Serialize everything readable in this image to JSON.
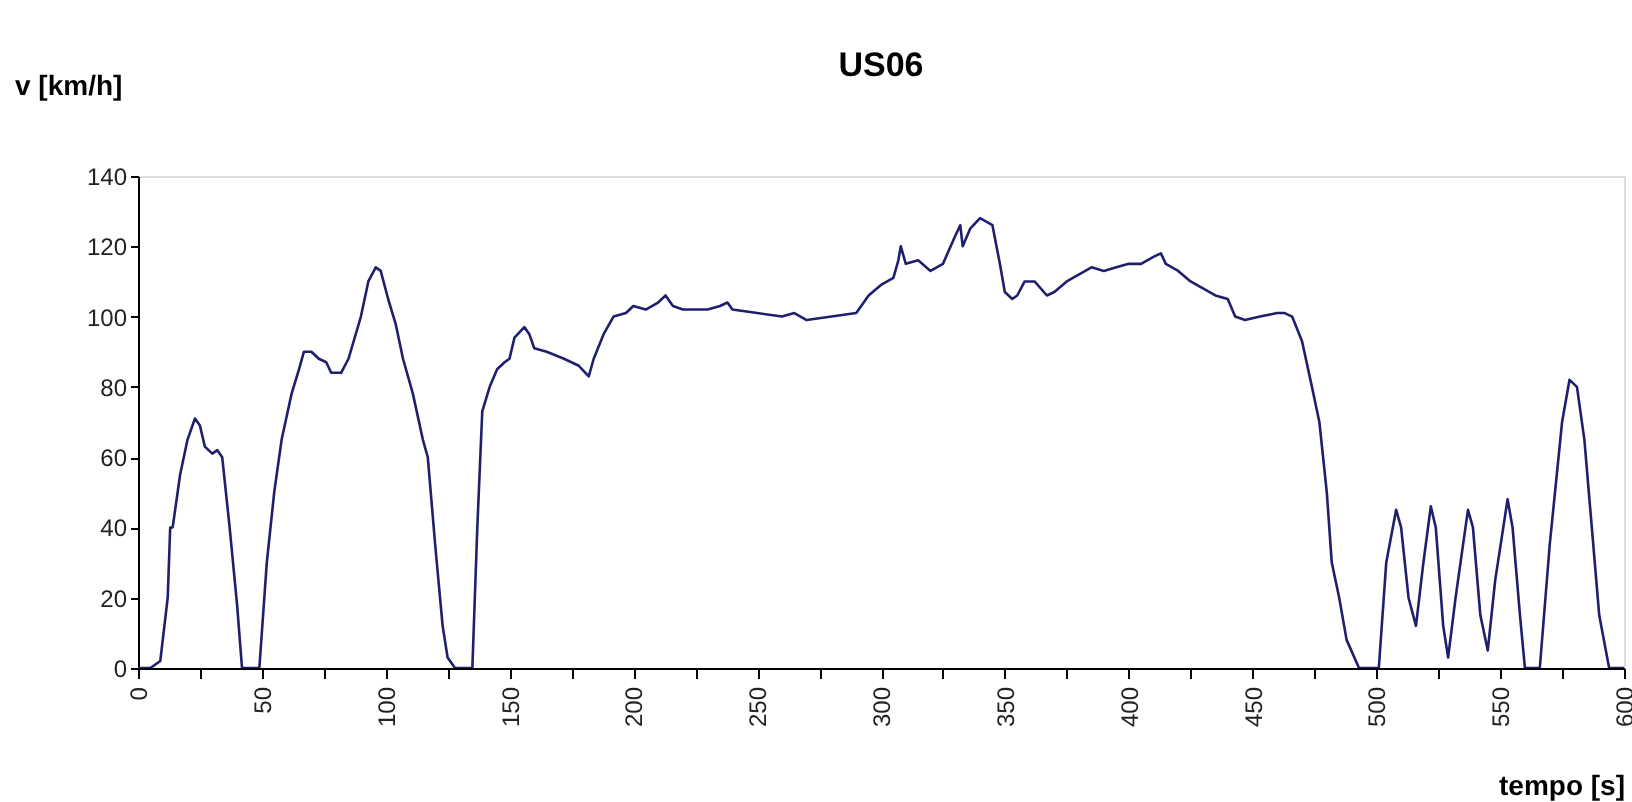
{
  "chart_data": {
    "type": "line",
    "title": "US06",
    "xlabel": "tempo [s]",
    "ylabel": "v [km/h]",
    "xlim": [
      0,
      600
    ],
    "ylim": [
      0,
      140
    ],
    "xticks": [
      0,
      {
        "value": 25,
        "label": null
      },
      50,
      {
        "value": 75,
        "label": null
      },
      100,
      {
        "value": 125,
        "label": null
      },
      150,
      {
        "value": 175,
        "label": null
      },
      200,
      {
        "value": 225,
        "label": null
      },
      250,
      {
        "value": 275,
        "label": null
      },
      300,
      {
        "value": 325,
        "label": null
      },
      350,
      {
        "value": 375,
        "label": null
      },
      400,
      {
        "value": 425,
        "label": null
      },
      450,
      {
        "value": 475,
        "label": null
      },
      500,
      {
        "value": 525,
        "label": null
      },
      550,
      {
        "value": 575,
        "label": null
      },
      600
    ],
    "yticks": [
      0,
      20,
      40,
      60,
      80,
      100,
      120,
      140
    ],
    "grid": false,
    "marker": "none",
    "line_style": "solid",
    "series": [
      {
        "color": "#1f1f6e",
        "x": [
          0,
          5,
          9,
          12,
          13,
          14,
          17,
          20,
          23,
          25,
          27,
          30,
          32,
          34,
          37,
          40,
          42,
          49,
          52,
          55,
          58,
          62,
          65,
          67,
          70,
          73,
          76,
          78,
          82,
          85,
          90,
          93,
          96,
          98,
          101,
          104,
          107,
          111,
          115,
          117,
          120,
          123,
          125,
          128,
          135,
          137,
          139,
          142,
          145,
          148,
          150,
          152,
          156,
          158,
          160,
          165,
          172,
          178,
          182,
          184,
          188,
          192,
          197,
          200,
          205,
          210,
          213,
          216,
          220,
          230,
          235,
          238,
          240,
          250,
          260,
          265,
          270,
          280,
          290,
          295,
          300,
          305,
          307,
          308,
          310,
          315,
          320,
          325,
          330,
          332,
          333,
          336,
          340,
          345,
          348,
          350,
          353,
          355,
          358,
          362,
          367,
          370,
          375,
          380,
          385,
          390,
          395,
          400,
          405,
          410,
          413,
          415,
          420,
          425,
          430,
          435,
          440,
          443,
          447,
          453,
          460,
          463,
          466,
          470,
          474,
          477,
          480,
          482,
          485,
          488,
          493,
          501,
          504,
          508,
          510,
          513,
          516,
          519,
          522,
          524,
          527,
          529,
          532,
          537,
          539,
          542,
          545,
          548,
          553,
          555,
          558,
          560,
          566,
          570,
          575,
          578,
          581,
          584,
          587,
          590,
          594,
          600
        ],
        "values": [
          0,
          0,
          2,
          20,
          40,
          40,
          55,
          65,
          71,
          69,
          63,
          61,
          62,
          60,
          40,
          18,
          0,
          0,
          30,
          50,
          65,
          78,
          85,
          90,
          90,
          88,
          87,
          84,
          84,
          88,
          100,
          110,
          114,
          113,
          105,
          98,
          88,
          78,
          65,
          60,
          35,
          12,
          3,
          0,
          0,
          40,
          73,
          80,
          85,
          87,
          88,
          94,
          97,
          95,
          91,
          90,
          88,
          86,
          83,
          88,
          95,
          100,
          101,
          103,
          102,
          104,
          106,
          103,
          102,
          102,
          103,
          104,
          102,
          101,
          100,
          101,
          99,
          100,
          101,
          106,
          109,
          111,
          116,
          120,
          115,
          116,
          113,
          115,
          123,
          126,
          120,
          125,
          128,
          126,
          115,
          107,
          105,
          106,
          110,
          110,
          106,
          107,
          110,
          112,
          114,
          113,
          114,
          115,
          115,
          117,
          118,
          115,
          113,
          110,
          108,
          106,
          105,
          100,
          99,
          100,
          101,
          101,
          100,
          93,
          80,
          70,
          50,
          30,
          20,
          8,
          0,
          0,
          30,
          45,
          40,
          20,
          12,
          30,
          46,
          40,
          12,
          3,
          20,
          45,
          40,
          15,
          5,
          25,
          48,
          40,
          15,
          0,
          0,
          35,
          70,
          82,
          80,
          65,
          40,
          15,
          0,
          0
        ]
      }
    ]
  }
}
